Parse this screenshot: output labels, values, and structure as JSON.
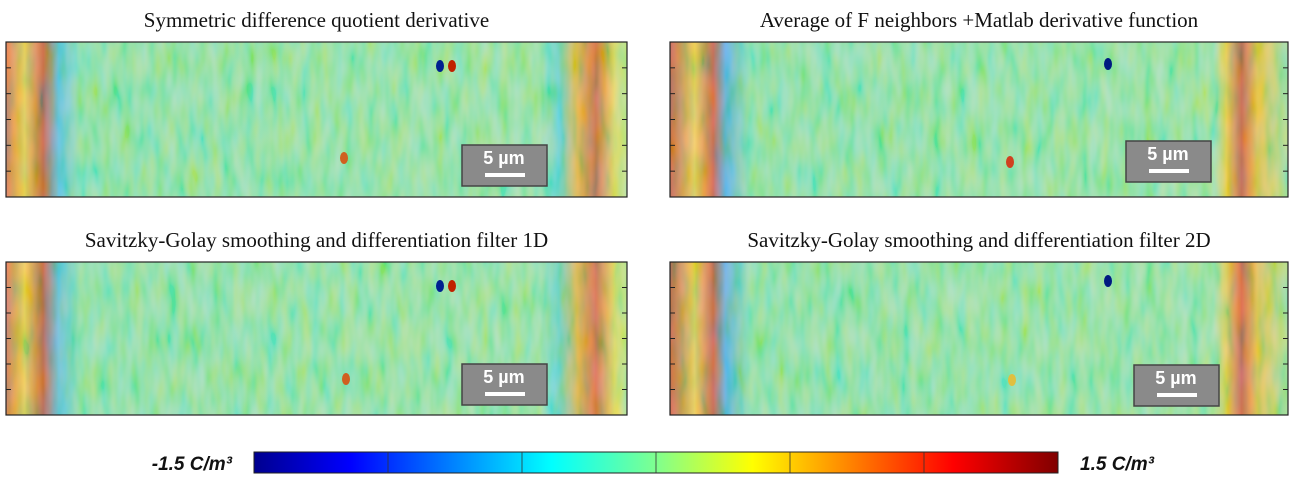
{
  "panels": [
    {
      "title": "Symmetric difference quotient derivative",
      "scale_bar": "5 µm"
    },
    {
      "title": "Average of F neighbors +Matlab derivative function",
      "scale_bar": "5 µm"
    },
    {
      "title": "Savitzky-Golay  smoothing and differentiation filter 1D",
      "scale_bar": "5 µm"
    },
    {
      "title": "Savitzky-Golay  smoothing and differentiation filter 2D",
      "scale_bar": "5 µm"
    }
  ],
  "colorbar": {
    "min_label": "-1.5 C/m³",
    "max_label": "1.5 C/m³"
  }
}
